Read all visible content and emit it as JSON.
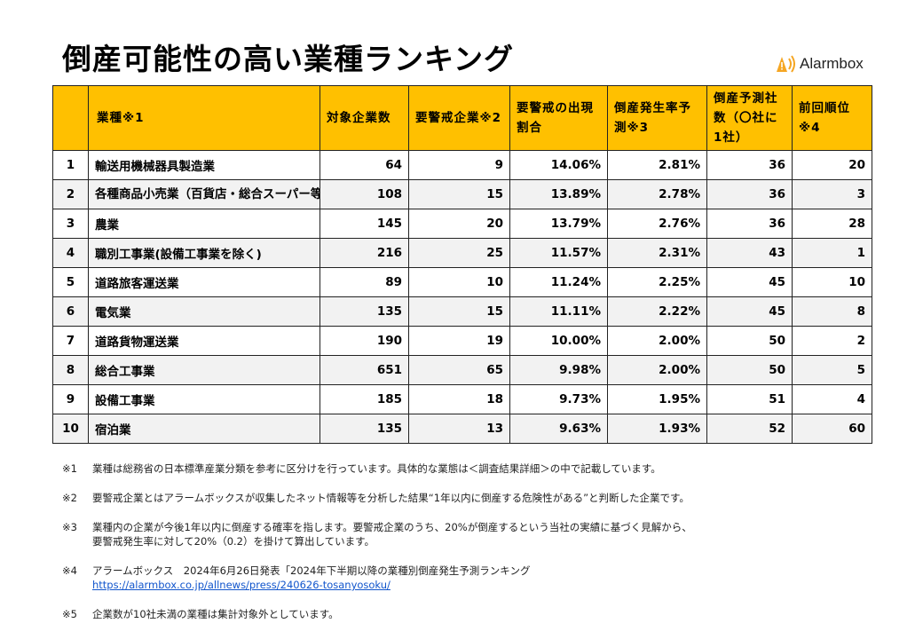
{
  "title": "倒産可能性の高い業種ランキング",
  "logo": {
    "text": "Alarmbox"
  },
  "table": {
    "headers": [
      "",
      "業種※1",
      "対象企業数",
      "要警戒企業※2",
      "要警戒の出現割合",
      "倒産発生率予測※3",
      "倒産予測社数（〇社に1社）",
      "前回順位※4"
    ],
    "rows": [
      {
        "rank": "1",
        "industry": "輸送用機械器具製造業",
        "companies": "64",
        "watch": "9",
        "ratio": "14.06%",
        "rate": "2.81%",
        "one_in": "36",
        "prev": "20"
      },
      {
        "rank": "2",
        "industry": "各種商品小売業（百貨店・総合スーパー等）",
        "companies": "108",
        "watch": "15",
        "ratio": "13.89%",
        "rate": "2.78%",
        "one_in": "36",
        "prev": "3"
      },
      {
        "rank": "3",
        "industry": "農業",
        "companies": "145",
        "watch": "20",
        "ratio": "13.79%",
        "rate": "2.76%",
        "one_in": "36",
        "prev": "28"
      },
      {
        "rank": "4",
        "industry": "職別工事業(設備工事業を除く)",
        "companies": "216",
        "watch": "25",
        "ratio": "11.57%",
        "rate": "2.31%",
        "one_in": "43",
        "prev": "1"
      },
      {
        "rank": "5",
        "industry": "道路旅客運送業",
        "companies": "89",
        "watch": "10",
        "ratio": "11.24%",
        "rate": "2.25%",
        "one_in": "45",
        "prev": "10"
      },
      {
        "rank": "6",
        "industry": "電気業",
        "companies": "135",
        "watch": "15",
        "ratio": "11.11%",
        "rate": "2.22%",
        "one_in": "45",
        "prev": "8"
      },
      {
        "rank": "7",
        "industry": "道路貨物運送業",
        "companies": "190",
        "watch": "19",
        "ratio": "10.00%",
        "rate": "2.00%",
        "one_in": "50",
        "prev": "2"
      },
      {
        "rank": "8",
        "industry": "総合工事業",
        "companies": "651",
        "watch": "65",
        "ratio": "9.98%",
        "rate": "2.00%",
        "one_in": "50",
        "prev": "5"
      },
      {
        "rank": "9",
        "industry": "設備工事業",
        "companies": "185",
        "watch": "18",
        "ratio": "9.73%",
        "rate": "1.95%",
        "one_in": "51",
        "prev": "4"
      },
      {
        "rank": "10",
        "industry": "宿泊業",
        "companies": "135",
        "watch": "13",
        "ratio": "9.63%",
        "rate": "1.93%",
        "one_in": "52",
        "prev": "60"
      }
    ]
  },
  "notes": [
    {
      "mark": "※1",
      "lines": [
        "業種は総務省の日本標準産業分類を参考に区分けを行っています。具体的な業態は＜調査結果詳細＞の中で記載しています。"
      ]
    },
    {
      "mark": "※2",
      "lines": [
        "要警戒企業とはアラームボックスが収集したネット情報等を分析した結果“1年以内に倒産する危険性がある”と判断した企業です。"
      ]
    },
    {
      "mark": "※3",
      "lines": [
        "業種内の企業が今後1年以内に倒産する確率を指します。要警戒企業のうち、20%が倒産するという当社の実績に基づく見解から、",
        "要警戒発生率に対して20%（0.2）を掛けて算出しています。"
      ]
    },
    {
      "mark": "※4",
      "lines": [
        "アラームボックス　2024年6月26日発表「2024年下半期以降の業種別倒産発生予測ランキング"
      ],
      "link": "https://alarmbox.co.jp/allnews/press/240626-tosanyosoku/"
    },
    {
      "mark": "※5",
      "lines": [
        "企業数が10社未満の業種は集計対象外としています。"
      ]
    }
  ],
  "colors": {
    "header_bg": "#ffc000",
    "row_alt_bg": "#f2f2f2",
    "logo_accent": "#f5a623",
    "link": "#1155cc"
  }
}
